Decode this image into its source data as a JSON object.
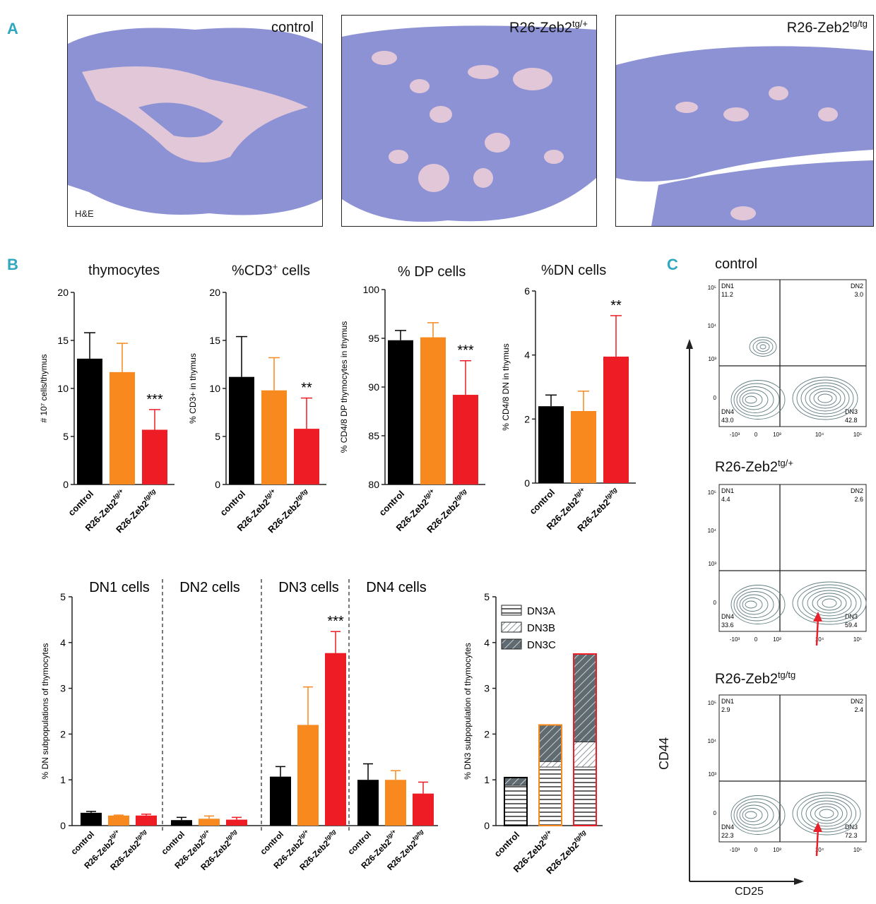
{
  "panels": {
    "a": "A",
    "b": "B",
    "c": "C"
  },
  "histology": {
    "images": [
      {
        "label": "control"
      },
      {
        "label_base": "R26-Zeb2",
        "label_sup": "tg/+"
      },
      {
        "label_base": "R26-Zeb2",
        "label_sup": "tg/tg"
      }
    ],
    "stain_label": "H&E"
  },
  "colors": {
    "control": "#000000",
    "tg_het": "#f7891f",
    "tg_hom": "#ee1c24",
    "dn3a": "#ffffff",
    "dn3b": "#cfd5d8",
    "dn3c": "#5f6b70",
    "contour": "#5f7d80",
    "accent": "#2ea7bf"
  },
  "groups": {
    "control": "control",
    "het_base": "R26-Zeb2",
    "het_sup": "tg/+",
    "hom_base": "R26-Zeb2",
    "hom_sup": "tg/tg"
  },
  "chart_data": [
    {
      "type": "bar",
      "title_base": "thymocytes",
      "title_sup": "",
      "ylabel": "# 10⁷ cells/thymus",
      "ylim": [
        0,
        20
      ],
      "yticks": [
        0,
        5,
        10,
        15,
        20
      ],
      "categories": [
        "control",
        "R26-Zeb2tg/+",
        "R26-Zeb2tg/tg"
      ],
      "values": [
        13.1,
        11.7,
        5.7
      ],
      "errors": [
        2.7,
        3.0,
        2.1
      ],
      "significance": [
        "",
        "",
        "***"
      ]
    },
    {
      "type": "bar",
      "title_base": "%CD3",
      "title_sup": "+",
      "title_tail": " cells",
      "ylabel": "% CD3+ in thymus",
      "ylim": [
        0,
        20
      ],
      "yticks": [
        0,
        5,
        10,
        15,
        20
      ],
      "categories": [
        "control",
        "R26-Zeb2tg/+",
        "R26-Zeb2tg/tg"
      ],
      "values": [
        11.2,
        9.8,
        5.8
      ],
      "errors": [
        4.2,
        3.4,
        3.2
      ],
      "significance": [
        "",
        "",
        "**"
      ]
    },
    {
      "type": "bar",
      "title_base": "% DP cells",
      "title_sup": "",
      "ylabel": "% CD4/8 DP thymocytes in thymus",
      "ylim": [
        80,
        100
      ],
      "yticks": [
        80,
        85,
        90,
        95,
        100
      ],
      "categories": [
        "control",
        "R26-Zeb2tg/+",
        "R26-Zeb2tg/tg"
      ],
      "values": [
        94.8,
        95.1,
        89.2
      ],
      "errors": [
        1.0,
        1.5,
        3.5
      ],
      "significance": [
        "",
        "",
        "***"
      ]
    },
    {
      "type": "bar",
      "title_base": "%DN cells",
      "title_sup": "",
      "ylabel": "% CD4/8 DN in thymus",
      "ylim": [
        0,
        6
      ],
      "yticks": [
        0,
        2,
        4,
        6
      ],
      "categories": [
        "control",
        "R26-Zeb2tg/+",
        "R26-Zeb2tg/tg"
      ],
      "values": [
        2.4,
        2.25,
        3.95
      ],
      "errors": [
        0.35,
        0.62,
        1.28
      ],
      "significance": [
        "",
        "",
        "**"
      ]
    },
    {
      "type": "bar",
      "ylabel": "% DN subpopulations of thymocytes",
      "ylim": [
        0,
        5
      ],
      "yticks": [
        0,
        1,
        2,
        3,
        4,
        5
      ],
      "groups": [
        {
          "title": "DN1 cells",
          "values": [
            0.28,
            0.22,
            0.22
          ],
          "errors": [
            0.03,
            0.01,
            0.03
          ],
          "significance": [
            "",
            "",
            ""
          ]
        },
        {
          "title": "DN2 cells",
          "values": [
            0.12,
            0.15,
            0.13
          ],
          "errors": [
            0.06,
            0.06,
            0.05
          ],
          "significance": [
            "",
            "",
            ""
          ]
        },
        {
          "title": "DN3 cells",
          "values": [
            1.07,
            2.2,
            3.77
          ],
          "errors": [
            0.22,
            0.83,
            0.47
          ],
          "significance": [
            "",
            "",
            "***"
          ]
        },
        {
          "title": "DN4 cells",
          "values": [
            1.0,
            1.0,
            0.7
          ],
          "errors": [
            0.35,
            0.2,
            0.25
          ],
          "significance": [
            "",
            "",
            ""
          ]
        }
      ],
      "categories": [
        "control",
        "R26-Zeb2tg/+",
        "R26-Zeb2tg/tg"
      ]
    },
    {
      "type": "bar",
      "stacked": true,
      "ylabel": "% DN3 subpopulation of thymocytes",
      "ylim": [
        0,
        5
      ],
      "yticks": [
        0,
        1,
        2,
        3,
        4,
        5
      ],
      "categories": [
        "control",
        "R26-Zeb2tg/+",
        "R26-Zeb2tg/tg"
      ],
      "series": [
        {
          "name": "DN3A",
          "values": [
            0.88,
            1.28,
            1.28
          ]
        },
        {
          "name": "DN3B",
          "values": [
            0.0,
            0.12,
            0.55
          ]
        },
        {
          "name": "DN3C",
          "values": [
            0.17,
            0.8,
            1.92
          ]
        }
      ]
    },
    {
      "type": "scatter",
      "title_base": "control",
      "title_sup": "",
      "quadrants": {
        "DN1": "11.2",
        "DN2": "3.0",
        "DN3": "42.8",
        "DN4": "43.0"
      }
    },
    {
      "type": "scatter",
      "title_base": "R26-Zeb2",
      "title_sup": "tg/+",
      "quadrants": {
        "DN1": "4.4",
        "DN2": "2.6",
        "DN3": "59.4",
        "DN4": "33.6"
      }
    },
    {
      "type": "scatter",
      "title_base": "R26-Zeb2",
      "title_sup": "tg/tg",
      "quadrants": {
        "DN1": "2.9",
        "DN2": "2.4",
        "DN3": "72.3",
        "DN4": "22.3"
      }
    }
  ],
  "flow_axes": {
    "xlabel": "CD25",
    "ylabel": "CD44",
    "x_ticks": [
      "-10³",
      "0",
      "10³",
      "10⁴",
      "10⁵"
    ],
    "y_ticks": [
      "10⁵",
      "10⁴",
      "10³",
      "0"
    ],
    "quadrant_names": [
      "DN1",
      "DN2",
      "DN3",
      "DN4"
    ]
  }
}
